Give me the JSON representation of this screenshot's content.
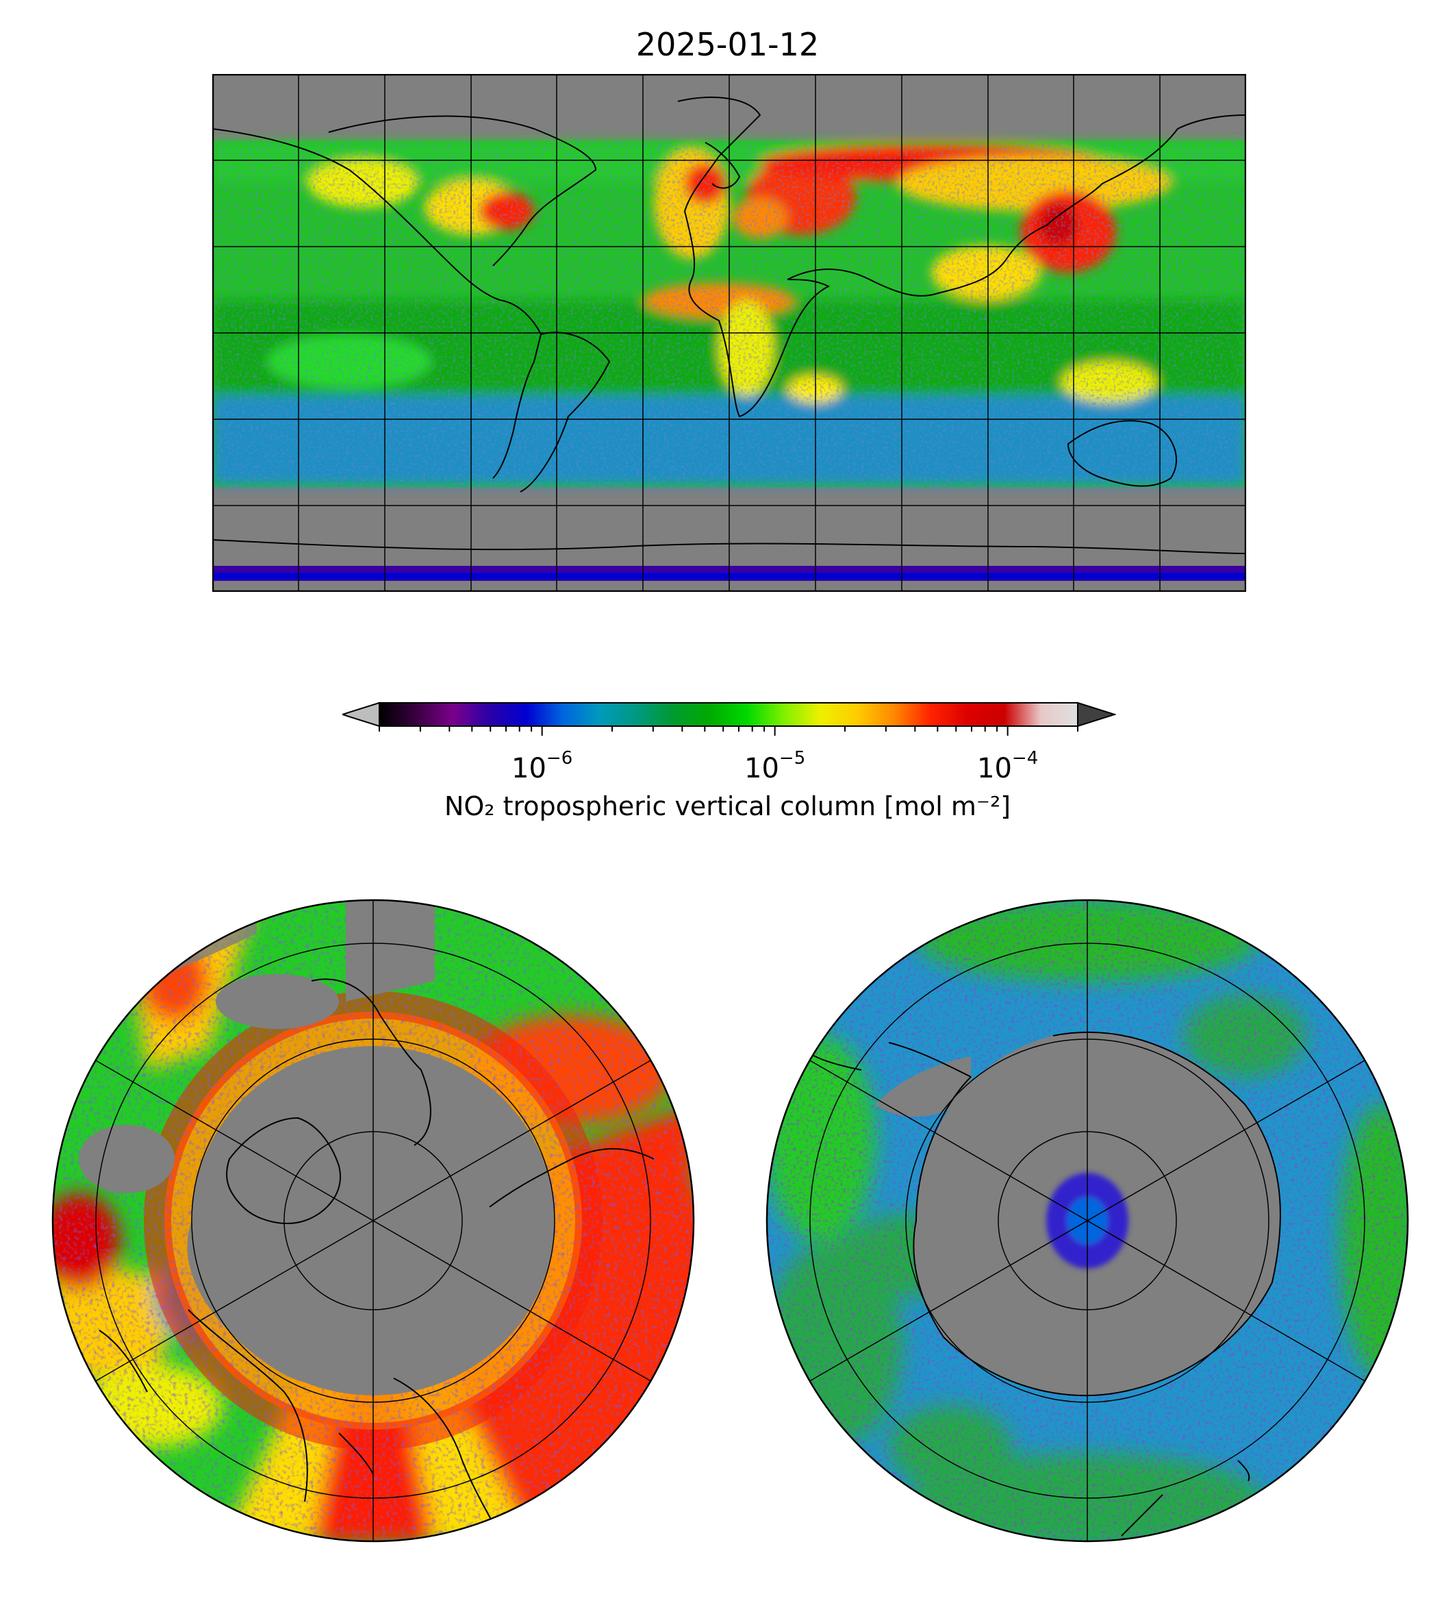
{
  "figure": {
    "title": "2025-01-12"
  },
  "colorbar": {
    "label": "NO₂ tropospheric vertical column [mol m⁻²]",
    "scale": "log",
    "range": [
      2e-07,
      0.0002
    ],
    "extend": "both",
    "ticks": [
      {
        "base": "10",
        "exponent": "−6",
        "value": 1e-06
      },
      {
        "base": "10",
        "exponent": "−5",
        "value": 1e-05
      },
      {
        "base": "10",
        "exponent": "−4",
        "value": 0.0001
      }
    ],
    "colors": [
      "#000000",
      "#3a0040",
      "#7a008a",
      "#2a00a8",
      "#0000d0",
      "#0066dd",
      "#0099bb",
      "#009980",
      "#009a30",
      "#00aa00",
      "#00d800",
      "#7ff000",
      "#eef000",
      "#ffcc00",
      "#ff8800",
      "#ff2200",
      "#dd0000",
      "#cc0000",
      "#e8c8c8",
      "#e0e0e0"
    ],
    "under_color": "#bdbdbd",
    "over_color": "#404040"
  },
  "maps": {
    "world": {
      "projection": "plate-carree",
      "land_mask_color": "#808080",
      "gridlines": "30 degree"
    },
    "north": {
      "projection": "north-polar-stereographic"
    },
    "south": {
      "projection": "south-polar-stereographic"
    }
  }
}
